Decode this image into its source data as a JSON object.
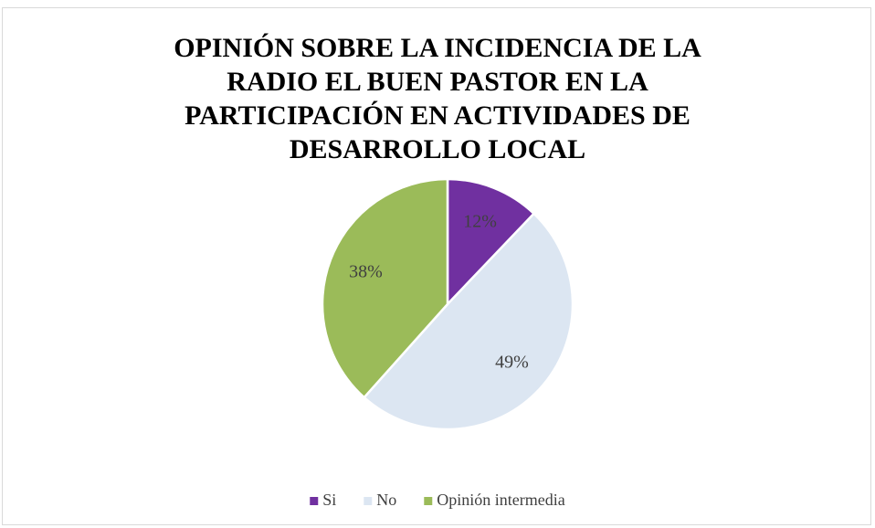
{
  "chart_data": {
    "type": "pie",
    "title": "OPINIÓN SOBRE LA INCIDENCIA DE LA RADIO EL BUEN PASTOR EN LA PARTICIPACIÓN EN ACTIVIDADES DE DESARROLLO LOCAL",
    "categories": [
      "Si",
      "No",
      "Opinión intermedia"
    ],
    "values": [
      12,
      49,
      38
    ],
    "value_labels": [
      "12%",
      "49%",
      "38%"
    ],
    "colors": [
      "#7030a0",
      "#dce6f2",
      "#9bbb59"
    ],
    "legend": "bottom"
  }
}
